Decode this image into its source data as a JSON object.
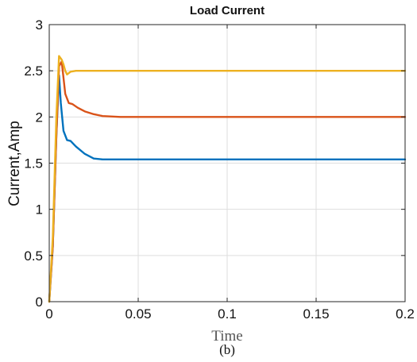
{
  "chart_data": {
    "type": "line",
    "title": "Load Current",
    "xlabel": "Time",
    "ylabel": "Current,Amp",
    "caption": "(b)",
    "xlim": [
      0,
      0.2
    ],
    "ylim": [
      0,
      3
    ],
    "xticks": [
      "0",
      "0.05",
      "0.1",
      "0.15",
      "0.2"
    ],
    "yticks": [
      "0",
      "0.5",
      "1",
      "1.5",
      "2",
      "2.5",
      "3"
    ],
    "grid": true,
    "series": [
      {
        "color": "#0072BD",
        "points": [
          [
            0,
            0
          ],
          [
            0.002,
            0.6
          ],
          [
            0.004,
            1.8
          ],
          [
            0.0055,
            2.45
          ],
          [
            0.0065,
            2.15
          ],
          [
            0.008,
            1.85
          ],
          [
            0.01,
            1.75
          ],
          [
            0.012,
            1.74
          ],
          [
            0.015,
            1.68
          ],
          [
            0.02,
            1.6
          ],
          [
            0.025,
            1.55
          ],
          [
            0.03,
            1.54
          ],
          [
            0.05,
            1.54
          ],
          [
            0.1,
            1.54
          ],
          [
            0.15,
            1.54
          ],
          [
            0.2,
            1.54
          ]
        ]
      },
      {
        "color": "#D95319",
        "points": [
          [
            0,
            0
          ],
          [
            0.002,
            0.6
          ],
          [
            0.004,
            1.8
          ],
          [
            0.0055,
            2.55
          ],
          [
            0.007,
            2.6
          ],
          [
            0.009,
            2.25
          ],
          [
            0.011,
            2.15
          ],
          [
            0.013,
            2.14
          ],
          [
            0.016,
            2.1
          ],
          [
            0.02,
            2.06
          ],
          [
            0.025,
            2.03
          ],
          [
            0.03,
            2.01
          ],
          [
            0.04,
            2.0
          ],
          [
            0.1,
            2.0
          ],
          [
            0.15,
            2.0
          ],
          [
            0.2,
            2.0
          ]
        ]
      },
      {
        "color": "#EDB120",
        "points": [
          [
            0,
            0
          ],
          [
            0.002,
            0.7
          ],
          [
            0.004,
            2.0
          ],
          [
            0.0055,
            2.66
          ],
          [
            0.007,
            2.62
          ],
          [
            0.008,
            2.57
          ],
          [
            0.009,
            2.5
          ],
          [
            0.01,
            2.46
          ],
          [
            0.012,
            2.49
          ],
          [
            0.015,
            2.5
          ],
          [
            0.05,
            2.5
          ],
          [
            0.1,
            2.5
          ],
          [
            0.15,
            2.5
          ],
          [
            0.2,
            2.5
          ]
        ]
      }
    ]
  }
}
